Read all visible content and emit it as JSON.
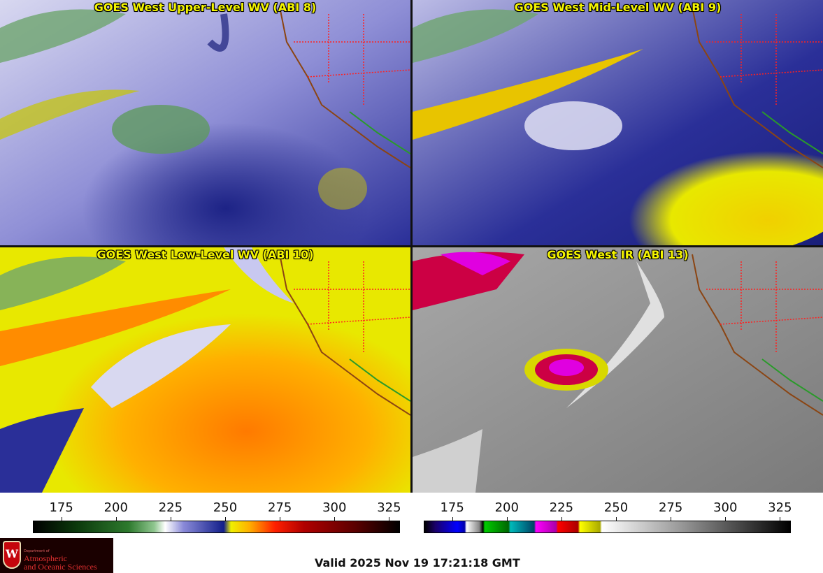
{
  "panels": {
    "upper": {
      "title": "GOES West Upper-Level WV (ABI 8)"
    },
    "mid": {
      "title": "GOES West Mid-Level WV (ABI 9)"
    },
    "low": {
      "title": "GOES West Low-Level WV (ABI 10)"
    },
    "ir": {
      "title": "GOES West IR (ABI 13)"
    }
  },
  "colorbars": {
    "wv": {
      "ticks": [
        "175",
        "200",
        "225",
        "250",
        "275",
        "300",
        "325"
      ],
      "tick_values": [
        175,
        200,
        225,
        250,
        275,
        300,
        325
      ],
      "range": [
        162,
        330
      ]
    },
    "ir": {
      "ticks": [
        "175",
        "200",
        "225",
        "250",
        "275",
        "300",
        "325"
      ],
      "tick_values": [
        175,
        200,
        225,
        250,
        275,
        300,
        325
      ],
      "range": [
        162,
        330
      ]
    }
  },
  "logo": {
    "dept": "Department of",
    "line1": "Atmospheric",
    "line2": "and Oceanic Sciences",
    "emblem": "W"
  },
  "valid_time": "Valid 2025 Nov 19 17:21:18 GMT"
}
